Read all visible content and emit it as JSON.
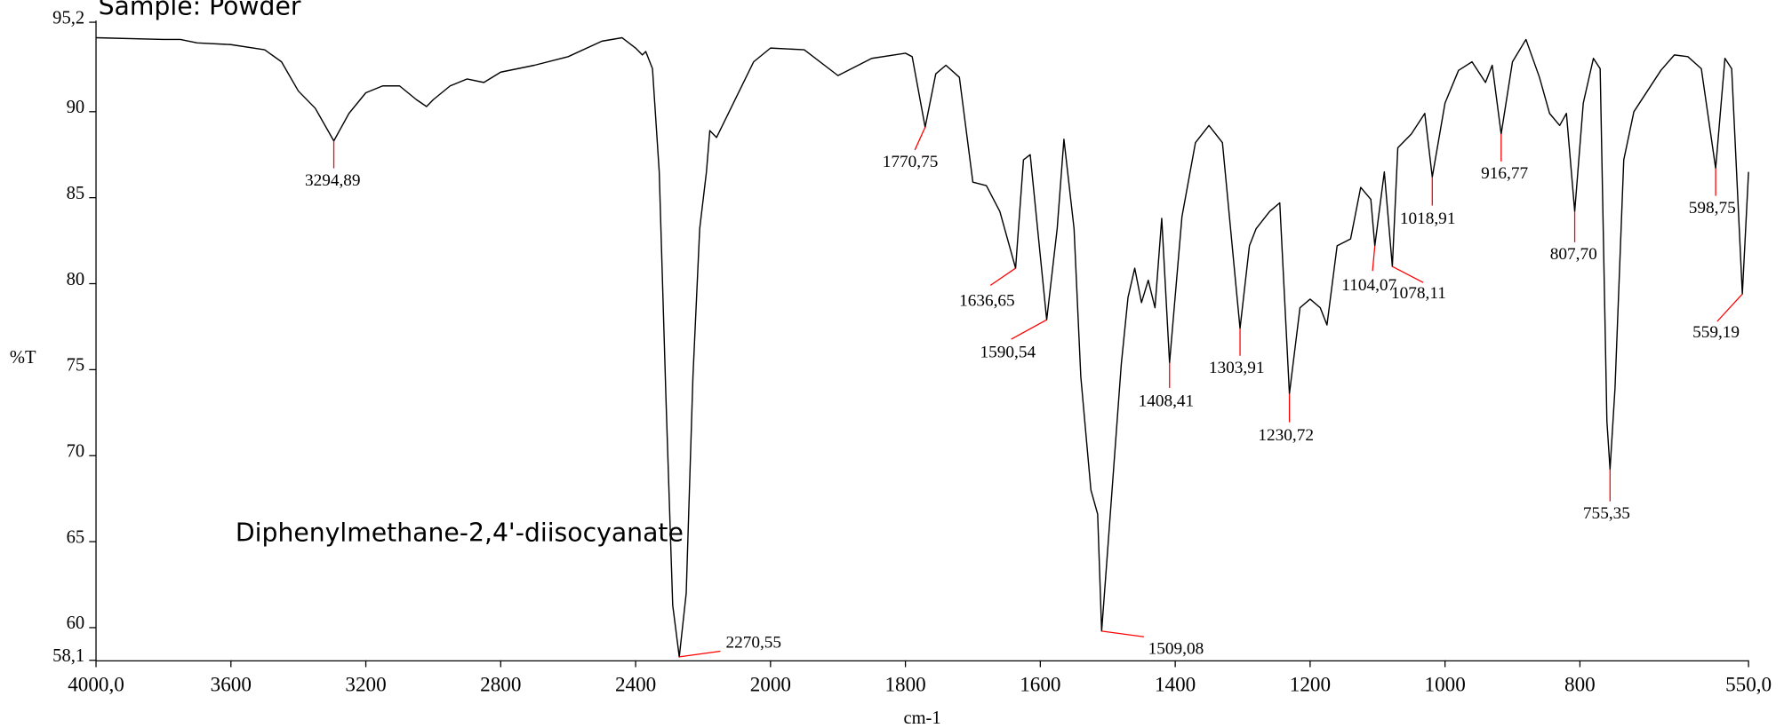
{
  "chart_data": {
    "type": "line",
    "title": "Sample: Powder",
    "annotation": "Diphenylmethane-2,4'-diisocyanate",
    "x_label": "cm-1",
    "y_label": "%T",
    "color": "#000000",
    "peak_color": "#ff0000",
    "xlim": [
      4000,
      550
    ],
    "x_scale_change": {
      "at": 2000,
      "factor": 2
    },
    "ylim": [
      58.1,
      95.2
    ],
    "xticks": [
      {
        "value": 4000,
        "label": "4000,0"
      },
      3600,
      3200,
      2800,
      2400,
      2000,
      1800,
      1600,
      1400,
      1200,
      1000,
      800,
      {
        "value": 550,
        "label": "550,0"
      }
    ],
    "yticks": [
      {
        "value": 58.1,
        "label": "58,1"
      },
      60,
      65,
      70,
      75,
      80,
      85,
      90,
      {
        "value": 95.2,
        "label": "95,2"
      }
    ],
    "x": [
      4000,
      3800,
      3750,
      3700,
      3600,
      3500,
      3450,
      3400,
      3350,
      3294.89,
      3250,
      3200,
      3150,
      3100,
      3050,
      3020,
      3000,
      2950,
      2900,
      2850,
      2800,
      2700,
      2600,
      2500,
      2440,
      2400,
      2380,
      2370,
      2350,
      2330,
      2310,
      2290,
      2270.55,
      2250,
      2230,
      2210,
      2190,
      2180,
      2160,
      2140,
      2100,
      2050,
      2000,
      1950,
      1900,
      1850,
      1800,
      1790,
      1770.75,
      1755,
      1740,
      1720,
      1700,
      1680,
      1660,
      1636.65,
      1625,
      1615,
      1600,
      1590.54,
      1575,
      1565,
      1550,
      1540,
      1525,
      1515,
      1509.08,
      1500,
      1480,
      1470,
      1460,
      1450,
      1440,
      1430,
      1420,
      1408.41,
      1390,
      1370,
      1350,
      1330,
      1310,
      1303.91,
      1290,
      1280,
      1260,
      1245,
      1230.72,
      1215,
      1200,
      1185,
      1175,
      1160,
      1140,
      1125,
      1110,
      1104.07,
      1090,
      1078.11,
      1070,
      1050,
      1030,
      1018.91,
      1000,
      980,
      960,
      940,
      930,
      916.77,
      900,
      880,
      860,
      845,
      830,
      820,
      807.7,
      795,
      780,
      770,
      760,
      755.35,
      748,
      735,
      720,
      700,
      680,
      660,
      640,
      620,
      598.75,
      585,
      575,
      559.19,
      550
    ],
    "values": [
      94.3,
      94.2,
      94.2,
      94.0,
      93.9,
      93.6,
      92.9,
      91.2,
      90.2,
      88.3,
      89.9,
      91.1,
      91.5,
      91.5,
      90.7,
      90.3,
      90.7,
      91.5,
      91.9,
      91.7,
      92.3,
      92.7,
      93.2,
      94.1,
      94.3,
      93.7,
      93.3,
      93.5,
      92.5,
      86.5,
      73.3,
      61.3,
      58.3,
      62.0,
      74.6,
      83.2,
      86.5,
      88.9,
      88.5,
      89.3,
      90.9,
      92.9,
      93.7,
      93.6,
      92.1,
      93.1,
      93.4,
      93.2,
      89.1,
      92.2,
      92.7,
      92.0,
      85.9,
      85.7,
      84.2,
      80.9,
      87.2,
      87.5,
      81.6,
      77.9,
      83.2,
      88.4,
      83.2,
      74.6,
      68.0,
      66.6,
      59.8,
      64.6,
      75.3,
      79.2,
      80.9,
      78.9,
      80.2,
      78.6,
      83.8,
      75.4,
      83.9,
      88.2,
      89.2,
      88.2,
      79.9,
      77.4,
      82.2,
      83.2,
      84.2,
      84.7,
      73.6,
      78.6,
      79.1,
      78.6,
      77.6,
      82.2,
      82.6,
      85.6,
      84.9,
      82.2,
      86.5,
      81.0,
      87.9,
      88.7,
      89.9,
      86.2,
      90.5,
      92.4,
      92.9,
      91.7,
      92.7,
      88.7,
      92.9,
      94.2,
      92.0,
      89.9,
      89.2,
      89.9,
      84.2,
      90.5,
      93.1,
      92.5,
      72.0,
      69.2,
      73.9,
      87.2,
      90.0,
      91.2,
      92.4,
      93.3,
      93.2,
      92.5,
      86.7,
      93.1,
      92.5,
      79.4,
      86.5
    ],
    "peaks": [
      {
        "value": 3294.89,
        "label": "3294,89",
        "y": 88.3
      },
      {
        "value": 2270.55,
        "label": "2270,55",
        "y": 58.3
      },
      {
        "value": 1770.75,
        "label": "1770,75",
        "y": 89.1
      },
      {
        "value": 1636.65,
        "label": "1636,65",
        "y": 80.9
      },
      {
        "value": 1590.54,
        "label": "1590,54",
        "y": 77.9
      },
      {
        "value": 1509.08,
        "label": "1509,08",
        "y": 59.8
      },
      {
        "value": 1408.41,
        "label": "1408,41",
        "y": 75.4
      },
      {
        "value": 1303.91,
        "label": "1303,91",
        "y": 77.4
      },
      {
        "value": 1230.72,
        "label": "1230,72",
        "y": 73.6
      },
      {
        "value": 1104.07,
        "label": "1104,07",
        "y": 82.2
      },
      {
        "value": 1078.11,
        "label": "1078,11",
        "y": 81.0
      },
      {
        "value": 1018.91,
        "label": "1018,91",
        "y": 86.2
      },
      {
        "value": 916.77,
        "label": "916,77",
        "y": 88.7
      },
      {
        "value": 807.7,
        "label": "807,70",
        "y": 84.2
      },
      {
        "value": 755.35,
        "label": "755,35",
        "y": 69.2
      },
      {
        "value": 598.75,
        "label": "598,75",
        "y": 86.7
      },
      {
        "value": 559.19,
        "label": "559,19",
        "y": 79.4
      }
    ]
  }
}
